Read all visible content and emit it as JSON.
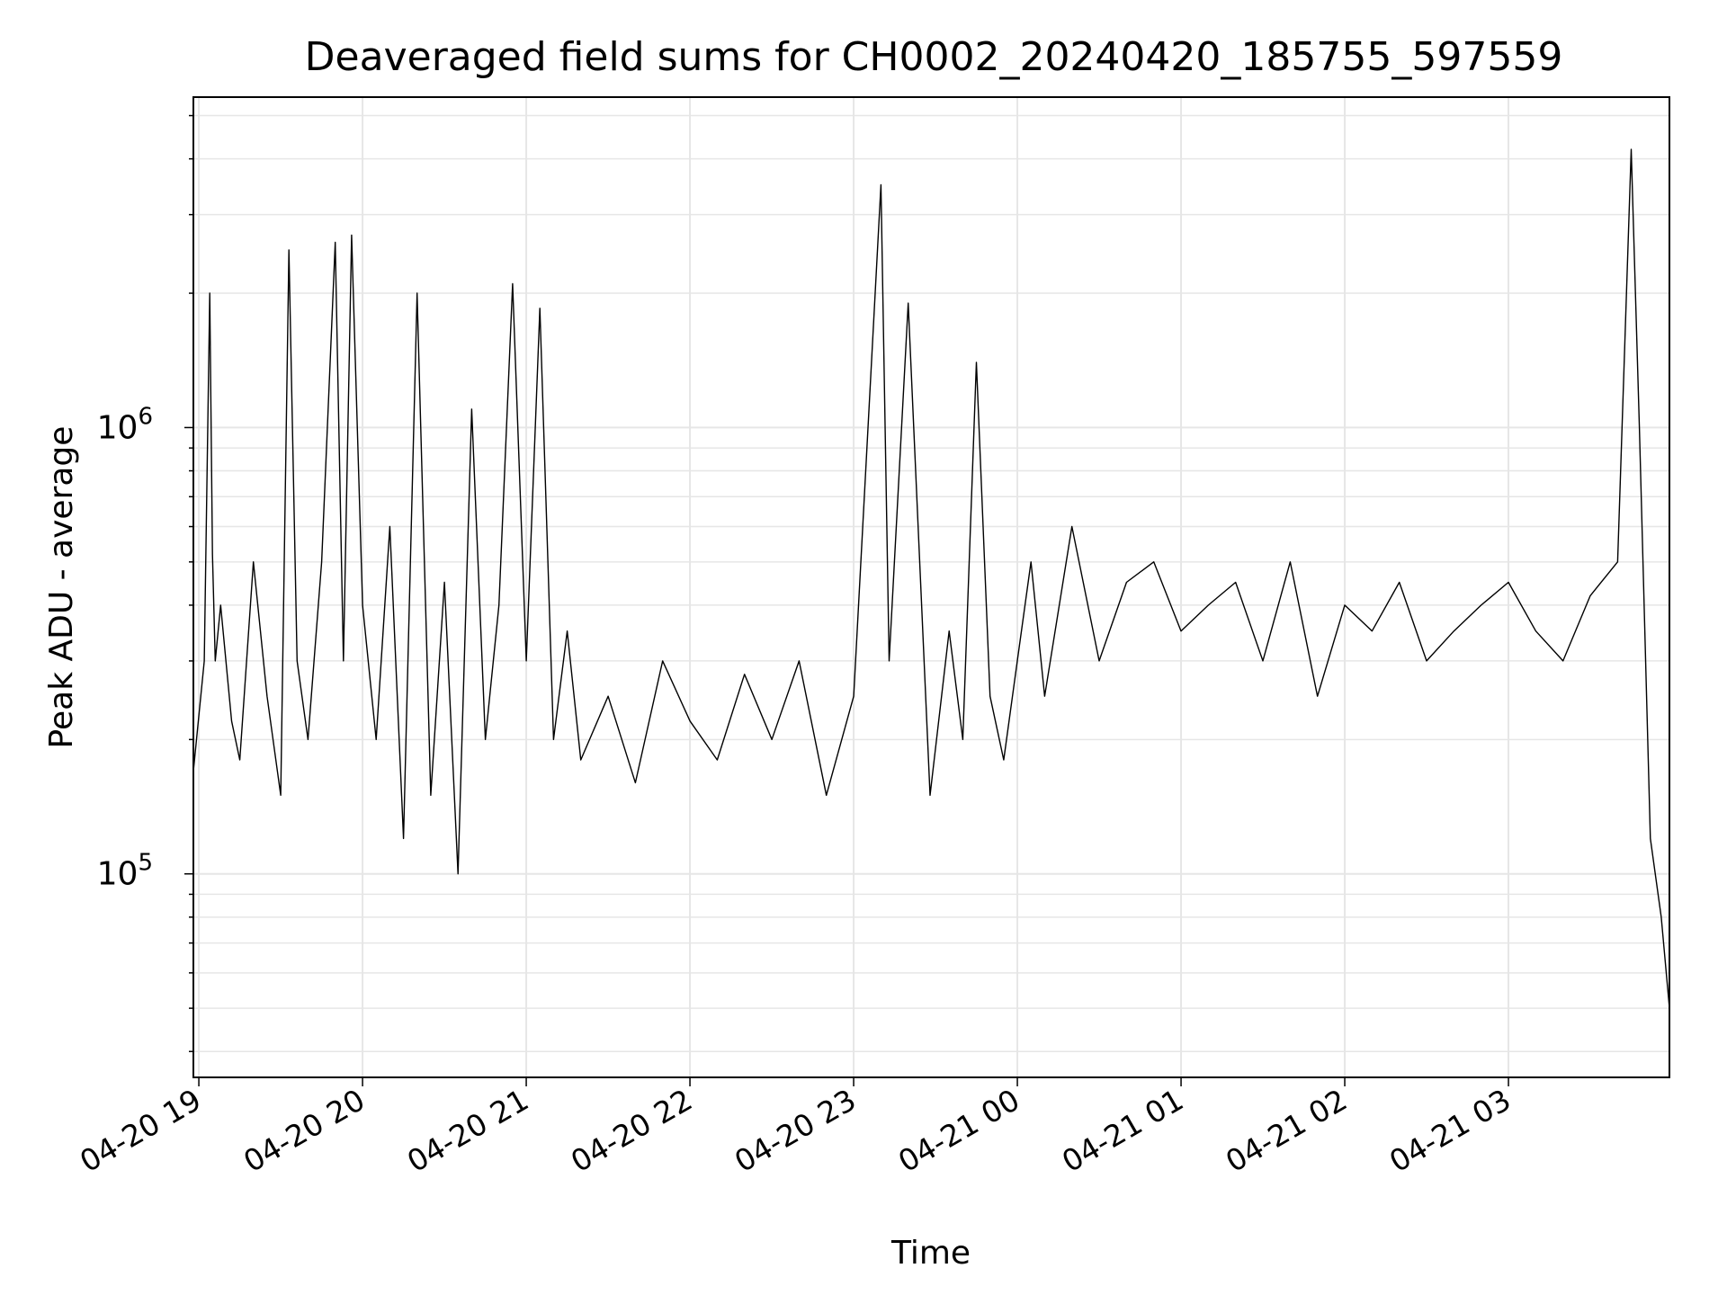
{
  "chart_data": {
    "type": "line",
    "title": "Deaveraged field sums for CH0002_20240420_185755_597559",
    "xlabel": "Time",
    "ylabel": "Peak ADU - average",
    "yscale": "log",
    "ylim": [
      35000,
      5500000
    ],
    "xlim": [
      "2024-04-20 18:58",
      "2024-04-21 03:59"
    ],
    "grid": true,
    "line_color": "#000000",
    "x_ticks": [
      {
        "label": "04-20 19",
        "time": "2024-04-20 19:00"
      },
      {
        "label": "04-20 20",
        "time": "2024-04-20 20:00"
      },
      {
        "label": "04-20 21",
        "time": "2024-04-20 21:00"
      },
      {
        "label": "04-20 22",
        "time": "2024-04-20 22:00"
      },
      {
        "label": "04-20 23",
        "time": "2024-04-20 23:00"
      },
      {
        "label": "04-21 00",
        "time": "2024-04-21 00:00"
      },
      {
        "label": "04-21 01",
        "time": "2024-04-21 01:00"
      },
      {
        "label": "04-21 02",
        "time": "2024-04-21 02:00"
      },
      {
        "label": "04-21 03",
        "time": "2024-04-21 03:00"
      }
    ],
    "y_ticks": [
      {
        "value": 100000,
        "base": "10",
        "exp": "5"
      },
      {
        "value": 1000000,
        "base": "10",
        "exp": "6"
      }
    ],
    "series": [
      {
        "x": [
          "2024-04-20 18:58",
          "2024-04-20 19:02",
          "2024-04-20 19:04",
          "2024-04-20 19:05",
          "2024-04-20 19:06",
          "2024-04-20 19:08",
          "2024-04-20 19:12",
          "2024-04-20 19:15",
          "2024-04-20 19:20",
          "2024-04-20 19:25",
          "2024-04-20 19:30",
          "2024-04-20 19:33",
          "2024-04-20 19:36",
          "2024-04-20 19:40",
          "2024-04-20 19:45",
          "2024-04-20 19:50",
          "2024-04-20 19:53",
          "2024-04-20 19:56",
          "2024-04-20 20:00",
          "2024-04-20 20:05",
          "2024-04-20 20:10",
          "2024-04-20 20:15",
          "2024-04-20 20:20",
          "2024-04-20 20:25",
          "2024-04-20 20:30",
          "2024-04-20 20:35",
          "2024-04-20 20:40",
          "2024-04-20 20:45",
          "2024-04-20 20:50",
          "2024-04-20 20:55",
          "2024-04-20 21:00",
          "2024-04-20 21:05",
          "2024-04-20 21:10",
          "2024-04-20 21:15",
          "2024-04-20 21:20",
          "2024-04-20 21:30",
          "2024-04-20 21:40",
          "2024-04-20 21:50",
          "2024-04-20 22:00",
          "2024-04-20 22:10",
          "2024-04-20 22:20",
          "2024-04-20 22:30",
          "2024-04-20 22:40",
          "2024-04-20 22:50",
          "2024-04-20 23:00",
          "2024-04-20 23:10",
          "2024-04-20 23:13",
          "2024-04-20 23:20",
          "2024-04-20 23:28",
          "2024-04-20 23:35",
          "2024-04-20 23:40",
          "2024-04-20 23:45",
          "2024-04-20 23:50",
          "2024-04-20 23:55",
          "2024-04-21 00:00",
          "2024-04-21 00:05",
          "2024-04-21 00:10",
          "2024-04-21 00:20",
          "2024-04-21 00:30",
          "2024-04-21 00:40",
          "2024-04-21 00:50",
          "2024-04-21 01:00",
          "2024-04-21 01:10",
          "2024-04-21 01:20",
          "2024-04-21 01:30",
          "2024-04-21 01:40",
          "2024-04-21 01:50",
          "2024-04-21 02:00",
          "2024-04-21 02:10",
          "2024-04-21 02:20",
          "2024-04-21 02:30",
          "2024-04-21 02:40",
          "2024-04-21 02:50",
          "2024-04-21 03:00",
          "2024-04-21 03:10",
          "2024-04-21 03:20",
          "2024-04-21 03:30",
          "2024-04-21 03:40",
          "2024-04-21 03:45",
          "2024-04-21 03:48",
          "2024-04-21 03:52",
          "2024-04-21 03:56",
          "2024-04-21 03:59"
        ],
        "y": [
          170000,
          300000,
          2000000,
          520000,
          300000,
          400000,
          220000,
          180000,
          500000,
          250000,
          150000,
          2500000,
          300000,
          200000,
          500000,
          2600000,
          300000,
          2700000,
          400000,
          200000,
          600000,
          120000,
          2000000,
          150000,
          450000,
          100000,
          1100000,
          200000,
          400000,
          2100000,
          300000,
          1850000,
          200000,
          350000,
          180000,
          250000,
          160000,
          300000,
          220000,
          180000,
          280000,
          200000,
          300000,
          150000,
          250000,
          3500000,
          300000,
          1900000,
          150000,
          350000,
          200000,
          1400000,
          250000,
          180000,
          300000,
          500000,
          250000,
          600000,
          300000,
          450000,
          500000,
          350000,
          400000,
          450000,
          300000,
          500000,
          250000,
          400000,
          350000,
          450000,
          300000,
          350000,
          400000,
          450000,
          350000,
          300000,
          420000,
          500000,
          4200000,
          1000000,
          120000,
          80000,
          50000
        ]
      }
    ]
  }
}
